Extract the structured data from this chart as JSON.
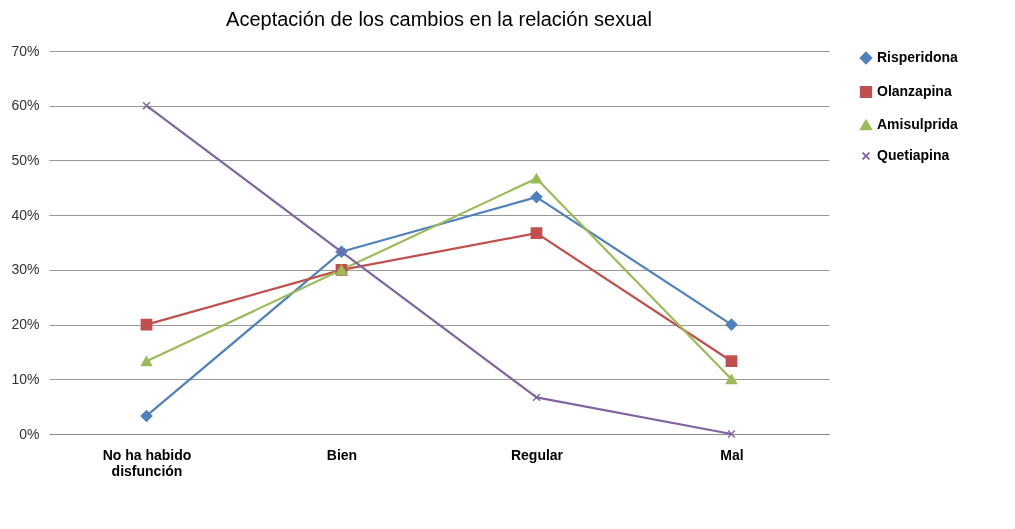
{
  "chart_data": {
    "type": "line",
    "title": "Aceptación de los cambios en la relación sexual",
    "categories": [
      "No ha habido disfunción",
      "Bien",
      "Regular",
      "Mal"
    ],
    "series": [
      {
        "name": "Risperidona",
        "color": "#4f81bd",
        "marker": "diamond",
        "values": [
          3.3,
          33.3,
          43.3,
          20
        ]
      },
      {
        "name": "Olanzapina",
        "color": "#c0504d",
        "marker": "square",
        "values": [
          20,
          30,
          36.7,
          13.3
        ]
      },
      {
        "name": "Amisulprida",
        "color": "#9bbb59",
        "marker": "triangle",
        "values": [
          13.3,
          30,
          46.7,
          10
        ]
      },
      {
        "name": "Quetiapina",
        "color": "#8064a2",
        "marker": "cross",
        "values": [
          60,
          33.3,
          6.7,
          0
        ]
      }
    ],
    "ylim": [
      0,
      70
    ],
    "yticks": [
      {
        "value": 0,
        "label": "0%"
      },
      {
        "value": 10,
        "label": "10%"
      },
      {
        "value": 20,
        "label": "20%"
      },
      {
        "value": 30,
        "label": "30%"
      },
      {
        "value": 40,
        "label": "40%"
      },
      {
        "value": 50,
        "label": "50%"
      },
      {
        "value": 60,
        "label": "60%"
      },
      {
        "value": 70,
        "label": "70%"
      }
    ],
    "grid": "y",
    "legend": "right"
  }
}
